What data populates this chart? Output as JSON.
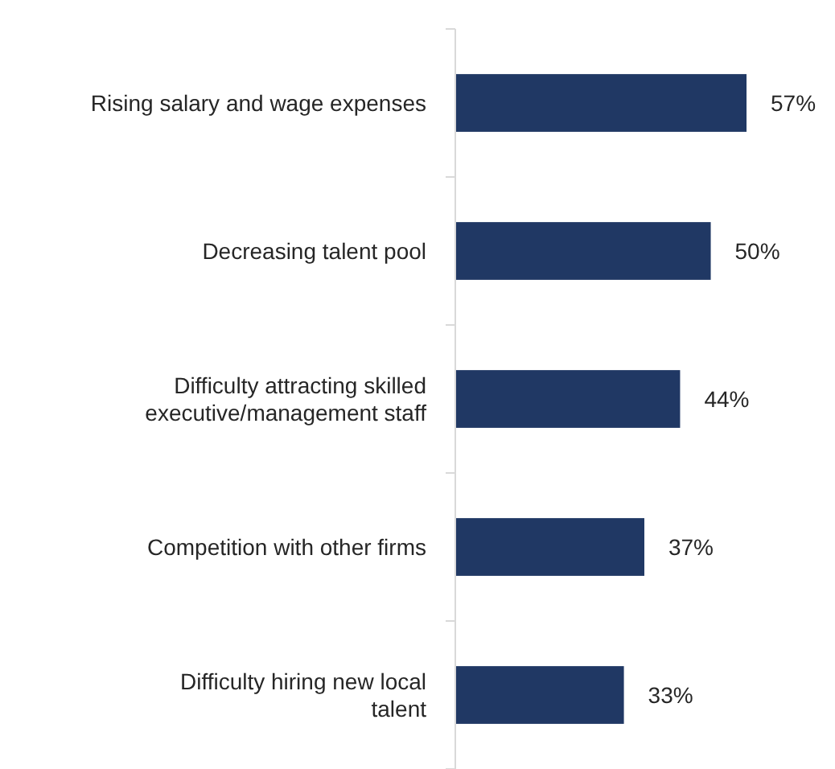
{
  "chart_data": {
    "type": "bar",
    "orientation": "horizontal",
    "categories": [
      "Rising salary and wage expenses",
      "Decreasing talent pool",
      "Difficulty attracting skilled executive/management staff",
      "Competition with other firms",
      "Difficulty hiring new local talent"
    ],
    "values": [
      57,
      50,
      44,
      37,
      33
    ],
    "value_labels": [
      "57%",
      "50%",
      "44%",
      "37%",
      "33%"
    ],
    "color": "#203864"
  }
}
